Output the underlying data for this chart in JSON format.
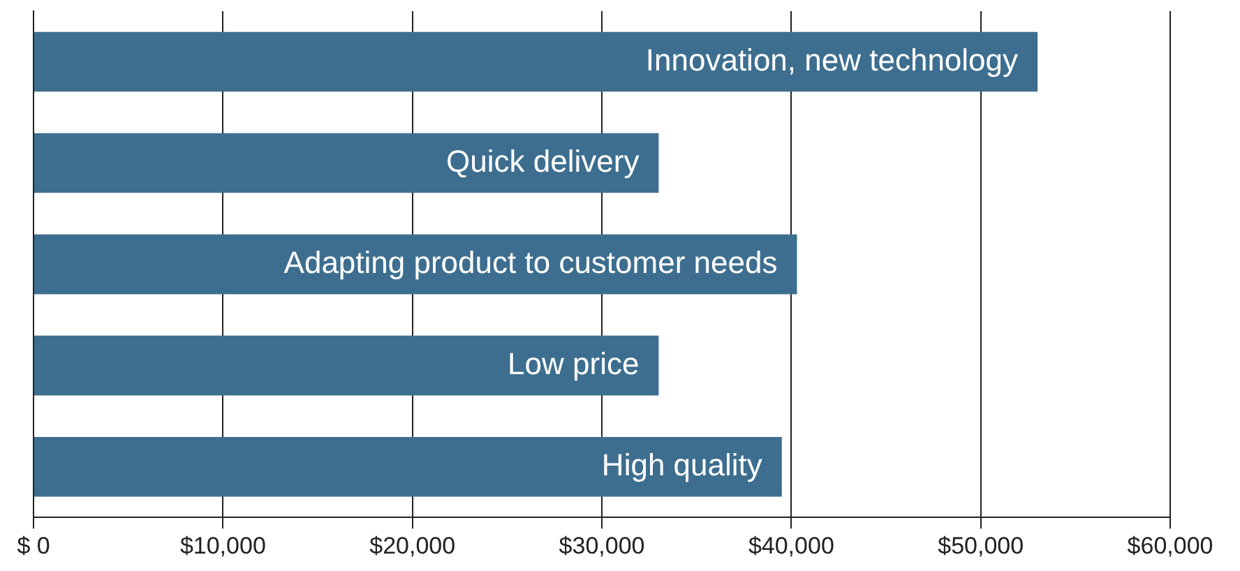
{
  "chart_data": {
    "type": "bar",
    "orientation": "horizontal",
    "categories": [
      "Innovation, new technology",
      "Quick delivery",
      "Adapting product to customer needs",
      "Low price",
      "High quality"
    ],
    "values": [
      53000,
      33000,
      40300,
      33000,
      39500
    ],
    "color": "#3d6e8f",
    "xlim": [
      0,
      60000
    ],
    "xticks": [
      {
        "value": 0,
        "label": "$ 0"
      },
      {
        "value": 10000,
        "label": "$10,000"
      },
      {
        "value": 20000,
        "label": "$20,000"
      },
      {
        "value": 30000,
        "label": "$30,000"
      },
      {
        "value": 40000,
        "label": "$40,000"
      },
      {
        "value": 50000,
        "label": "$50,000"
      },
      {
        "value": 60000,
        "label": "$60,000"
      }
    ],
    "grid": "x",
    "legend": false,
    "tick_labels": "x"
  }
}
